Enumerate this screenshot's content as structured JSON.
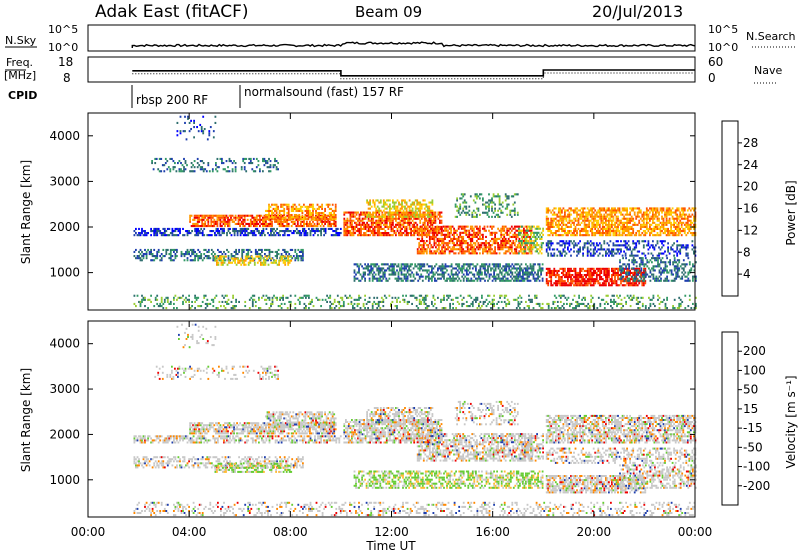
{
  "header": {
    "title": "Adak East (fitACF)",
    "beam": "Beam 09",
    "date": "20/Jul/2013"
  },
  "aux_panels": {
    "nsky_label": "N.Sky",
    "nsearch_label": "N.Search",
    "nsky_ticks": [
      "10^5",
      "10^0"
    ],
    "nsearch_ticks": [
      "10^5",
      "10^0"
    ],
    "freq_label_1": "Freq.",
    "freq_label_2": "[MHz]",
    "freq_ticks": [
      "18",
      "8"
    ],
    "nave_label": "Nave",
    "nave_ticks": [
      "60",
      "0"
    ],
    "cpid_label": "CPID",
    "programs": [
      "rbsp 200 RF",
      "normalsound (fast) 157 RF"
    ]
  },
  "colors": {
    "power_scale": [
      "#0000ff",
      "#1f3fae",
      "#2e6e6e",
      "#339966",
      "#99cc33",
      "#ffcc00",
      "#ff9900",
      "#ff5500",
      "#ee0000"
    ],
    "velocity_scale": [
      "#ee0000",
      "#ff4400",
      "#ff8800",
      "#ffbb33",
      "#c8c8c8",
      "#c8c8c8",
      "#66cc33",
      "#339966",
      "#2e6e6e",
      "#1f3fae"
    ]
  },
  "chart_data": [
    {
      "type": "line",
      "title": "",
      "xlabel": "",
      "ylabel": "Freq. [MHz]",
      "ylim": [
        8,
        18
      ],
      "series": [
        {
          "name": "Freq.",
          "x": [
            1.75,
            10.0,
            10.0,
            18.0,
            18.0,
            24.0
          ],
          "values": [
            12.5,
            12.5,
            10.5,
            10.5,
            12.8,
            12.8
          ]
        }
      ]
    },
    {
      "type": "heatmap",
      "title": "",
      "xlabel": "Time UT",
      "ylabel": "Slant Range [km]",
      "x_ticks": [
        "00:00",
        "04:00",
        "08:00",
        "12:00",
        "16:00",
        "20:00",
        "00:00"
      ],
      "y_ticks": [
        "1000",
        "2000",
        "3000",
        "4000"
      ],
      "xlim": [
        0,
        24
      ],
      "ylim": [
        180,
        4500
      ],
      "colorbar": {
        "label": "Power [dB]",
        "ticks": [
          "4",
          "8",
          "12",
          "16",
          "20",
          "24",
          "28"
        ],
        "range": [
          0,
          32
        ]
      }
    },
    {
      "type": "heatmap",
      "title": "",
      "xlabel": "Time UT",
      "ylabel": "Slant Range [km]",
      "x_ticks": [
        "00:00",
        "04:00",
        "08:00",
        "12:00",
        "16:00",
        "20:00",
        "00:00"
      ],
      "y_ticks": [
        "1000",
        "2000",
        "3000",
        "4000"
      ],
      "xlim": [
        0,
        24
      ],
      "ylim": [
        180,
        4500
      ],
      "colorbar": {
        "label": "Velocity [m s⁻¹]",
        "ticks": [
          "200",
          "100",
          "50",
          "15",
          "-15",
          "-50",
          "-100",
          "-200"
        ],
        "range": [
          -250,
          250
        ]
      }
    }
  ]
}
